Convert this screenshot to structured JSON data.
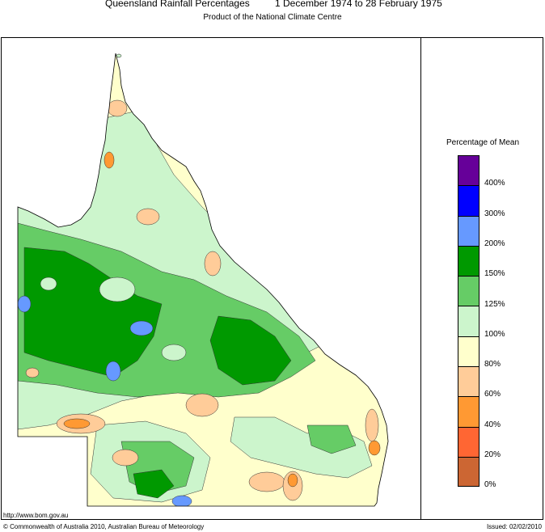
{
  "header": {
    "title": "Queensland Rainfall Percentages",
    "dates": "1 December 1974 to 28 February 1975",
    "subtitle": "Product of the National Climate Centre"
  },
  "legend": {
    "title": "Percentage of Mean",
    "bands": [
      {
        "label": "400%",
        "color": "#660099"
      },
      {
        "label": "300%",
        "color": "#0000ff"
      },
      {
        "label": "200%",
        "color": "#6699ff"
      },
      {
        "label": "150%",
        "color": "#009900"
      },
      {
        "label": "125%",
        "color": "#66cc66"
      },
      {
        "label": "100%",
        "color": "#ccf5cc"
      },
      {
        "label": "80%",
        "color": "#ffffcc"
      },
      {
        "label": "60%",
        "color": "#ffcc99"
      },
      {
        "label": "40%",
        "color": "#ff9933"
      },
      {
        "label": "20%",
        "color": "#ff6633"
      },
      {
        "label": "0%",
        "color": "#cc6633"
      }
    ]
  },
  "footer": {
    "url": "http://www.bom.gov.au",
    "copyright": "© Commonwealth of Australia 2010, Australian Bureau of Meteorology",
    "issued": "Issued: 02/02/2010"
  }
}
